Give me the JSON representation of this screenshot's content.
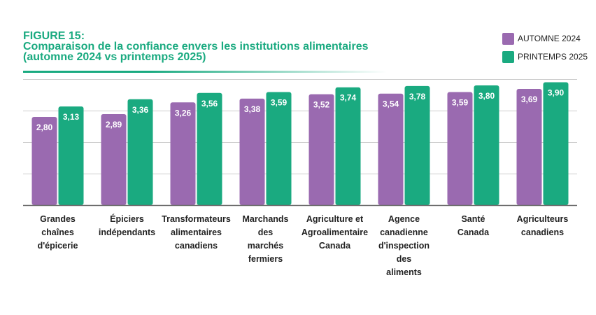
{
  "header": {
    "figure_label": "FIGURE 15:",
    "title": "Comparaison de la confiance envers les institutions alimentaires\n(automne 2024 vs printemps 2025)"
  },
  "colors": {
    "automne": "#9a6ab0",
    "printemps": "#1aaa80",
    "grid": "#cccccc",
    "axis": "#666666"
  },
  "chart_data": {
    "type": "bar",
    "title": "Comparaison de la confiance envers les institutions alimentaires (automne 2024 vs printemps 2025)",
    "categories": [
      "Grandes\nchaînes\nd'épicerie",
      "Épiciers\nindépendants",
      "Transformateurs\nalimentaires\ncanadiens",
      "Marchands\ndes\nmarchés\nfermiers",
      "Agriculture et\nAgroalimentaire\nCanada",
      "Agence\ncanadienne\nd'inspection\ndes\naliments",
      "Santé\nCanada",
      "Agriculteurs\ncanadiens"
    ],
    "series": [
      {
        "name": "AUTOMNE 2024",
        "values": [
          2.8,
          2.89,
          3.26,
          3.38,
          3.52,
          3.54,
          3.59,
          3.69
        ],
        "labels": [
          "2,80",
          "2,89",
          "3,26",
          "3,38",
          "3,52",
          "3,54",
          "3,59",
          "3,69"
        ]
      },
      {
        "name": "PRINTEMPS 2025",
        "values": [
          3.13,
          3.36,
          3.56,
          3.59,
          3.74,
          3.78,
          3.8,
          3.9
        ],
        "labels": [
          "3,13",
          "3,36",
          "3,56",
          "3,59",
          "3,74",
          "3,78",
          "3,80",
          "3,90"
        ]
      }
    ],
    "xlabel": "",
    "ylabel": "",
    "ylim": [
      0,
      4
    ],
    "grid": true,
    "legend_position": "top-right"
  }
}
